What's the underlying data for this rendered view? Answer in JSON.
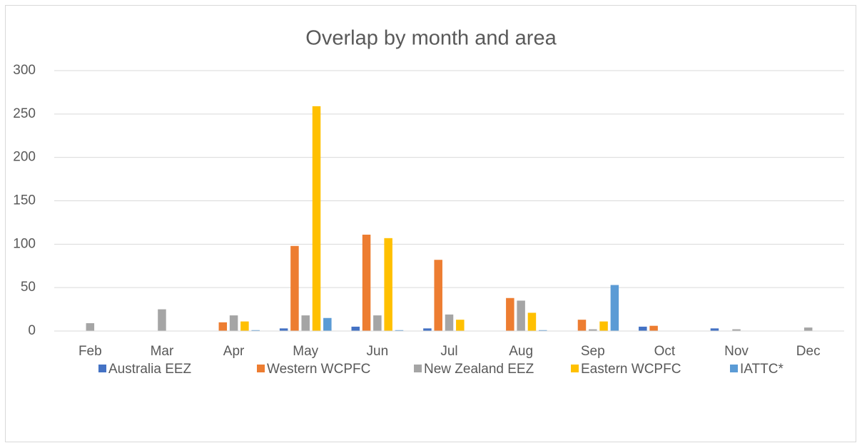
{
  "chart_data": {
    "type": "bar",
    "title": "Overlap by month and area",
    "categories": [
      "Feb",
      "Mar",
      "Apr",
      "May",
      "Jun",
      "Jul",
      "Aug",
      "Sep",
      "Oct",
      "Nov",
      "Dec"
    ],
    "series": [
      {
        "name": "Australia EEZ",
        "color": "#4472c4",
        "values": [
          0,
          0,
          0,
          3,
          5,
          3,
          0,
          0,
          5,
          3,
          0
        ]
      },
      {
        "name": "Western WCPFC",
        "color": "#ed7d31",
        "values": [
          0,
          0,
          10,
          98,
          111,
          82,
          38,
          13,
          6,
          0,
          0
        ]
      },
      {
        "name": "New Zealand EEZ",
        "color": "#a5a5a5",
        "values": [
          9,
          25,
          18,
          18,
          18,
          19,
          35,
          2,
          0,
          2,
          4
        ]
      },
      {
        "name": "Eastern WCPFC",
        "color": "#ffc000",
        "values": [
          0,
          0,
          11,
          259,
          107,
          13,
          21,
          11,
          0,
          0,
          0
        ]
      },
      {
        "name": "IATTC*",
        "color": "#5b9bd5",
        "values": [
          0,
          0,
          1,
          15,
          1,
          0,
          1,
          53,
          0,
          0,
          0
        ]
      }
    ],
    "ylim": [
      0,
      300
    ],
    "yticks": [
      0,
      50,
      100,
      150,
      200,
      250,
      300
    ],
    "grid": true,
    "legend": "bottom"
  }
}
